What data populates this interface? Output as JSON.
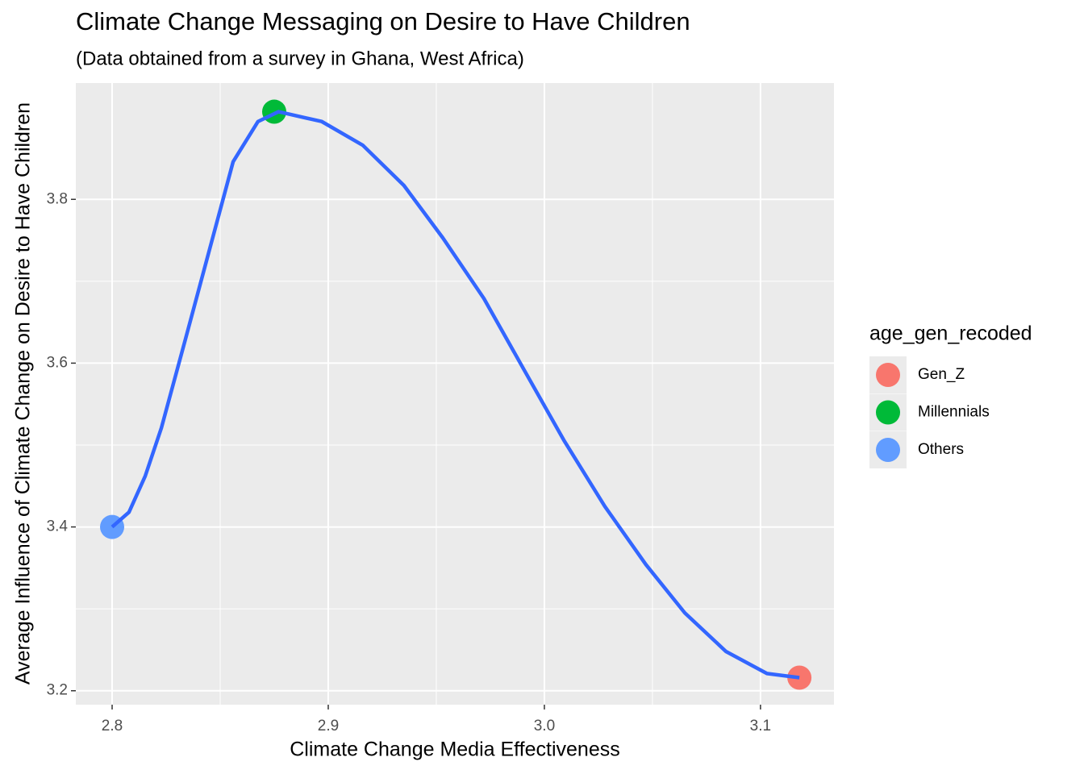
{
  "chart_data": {
    "type": "scatter",
    "title": "Climate Change Messaging on Desire to Have Children",
    "subtitle": "(Data obtained from a survey in Ghana, West Africa)",
    "x_label": "Climate Change Media Effectiveness",
    "y_label": "Average Influence of Climate Change on Desire to Have Children",
    "legend_title": "age_gen_recoded",
    "legend": "right",
    "grid": true,
    "series": [
      {
        "name": "Gen_Z",
        "color": "#F8766D",
        "x": [
          3.118
        ],
        "values": [
          3.216
        ]
      },
      {
        "name": "Millennials",
        "color": "#00BA38",
        "x": [
          2.875
        ],
        "values": [
          3.907
        ]
      },
      {
        "name": "Others",
        "color": "#619CFF",
        "x": [
          2.8
        ],
        "values": [
          3.4
        ]
      }
    ],
    "smooth": {
      "color": "#3366FF",
      "x": [
        2.8,
        2.8078,
        2.8153,
        2.8228,
        2.834,
        2.845,
        2.856,
        2.8675,
        2.877,
        2.897,
        2.916,
        2.935,
        2.953,
        2.972,
        2.991,
        3.009,
        3.028,
        3.047,
        3.065,
        3.084,
        3.103,
        3.118
      ],
      "values": [
        3.4,
        3.418,
        3.462,
        3.521,
        3.63,
        3.738,
        3.846,
        3.895,
        3.907,
        3.895,
        3.866,
        3.817,
        3.753,
        3.679,
        3.59,
        3.506,
        3.425,
        3.354,
        3.295,
        3.248,
        3.221,
        3.216
      ]
    },
    "xlim": [
      2.7832,
      3.134
    ],
    "ylim": [
      3.183,
      3.942
    ],
    "xticks": [
      2.8,
      2.9,
      {
        "value": 3,
        "label": "3.0"
      },
      3.1
    ],
    "yticks": [
      3.2,
      3.4,
      3.6,
      3.8
    ]
  }
}
